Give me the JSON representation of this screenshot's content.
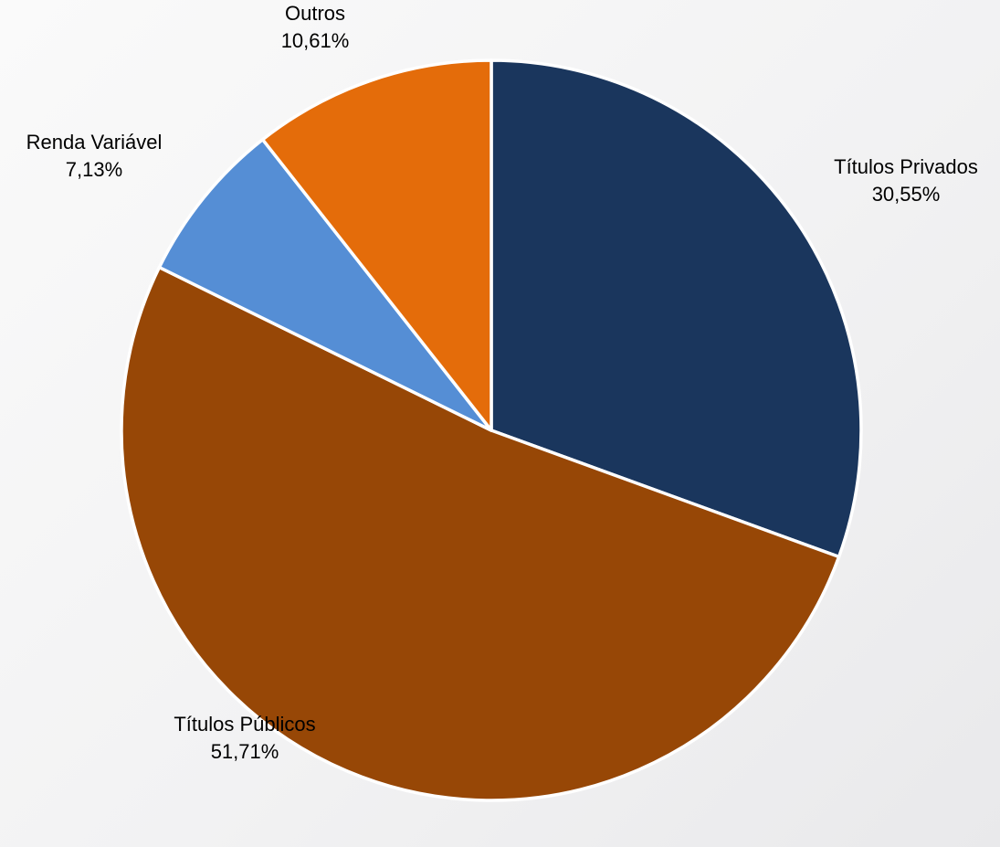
{
  "chart_data": {
    "type": "pie",
    "title": "",
    "start_angle_deg": 0,
    "direction": "clockwise",
    "slices": [
      {
        "name": "Títulos Privados",
        "value": 30.55,
        "value_label": "30,55%",
        "color": "#1a365d"
      },
      {
        "name": "Títulos Públicos",
        "value": 51.71,
        "value_label": "51,71%",
        "color": "#974706"
      },
      {
        "name": "Renda Variável",
        "value": 7.13,
        "value_label": "7,13%",
        "color": "#558ed5"
      },
      {
        "name": "Outros",
        "value": 10.61,
        "value_label": "10,61%",
        "color": "#e46c0a"
      }
    ],
    "legend": "none",
    "data_labels": "outside"
  }
}
